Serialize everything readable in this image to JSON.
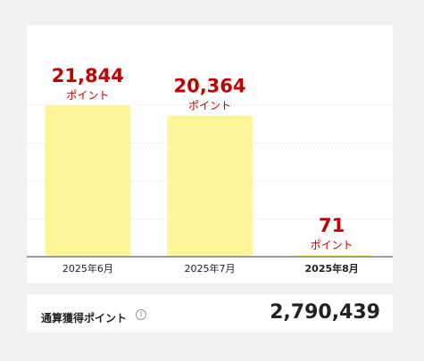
{
  "chart_data": {
    "type": "bar",
    "categories": [
      "2025年6月",
      "2025年7月",
      "2025年8月"
    ],
    "values": [
      21844,
      20364,
      71
    ],
    "value_labels": [
      "21,844",
      "20,364",
      "71"
    ],
    "unit_label": "ポイント",
    "highlighted_category": "2025年8月",
    "bar_color": "#fff599",
    "value_color": "#bf0000",
    "grid": true,
    "ylim": [
      0,
      21844
    ]
  },
  "summary": {
    "label": "通算獲得ポイント",
    "info_icon": "info-icon",
    "value": "2,790,439"
  }
}
